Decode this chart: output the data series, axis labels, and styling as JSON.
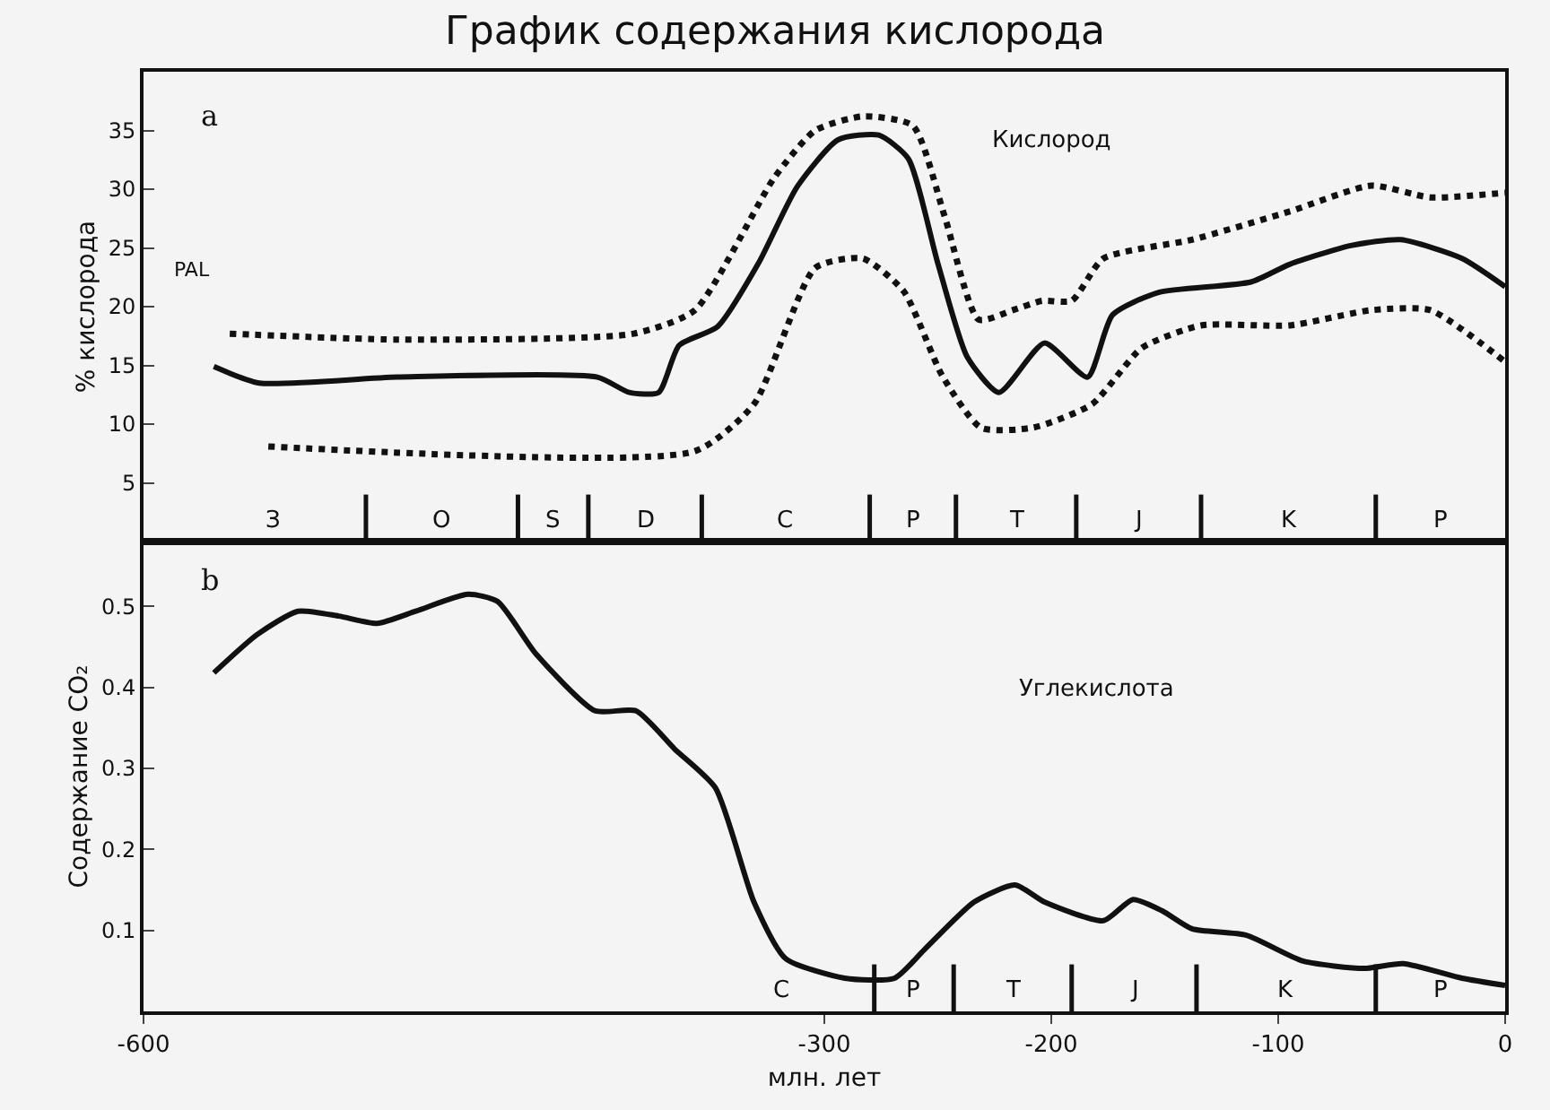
{
  "chart_data": [
    {
      "type": "line",
      "title": "График содержания кислорода",
      "ylabel": "% кислорода",
      "xlim": [
        -600,
        0
      ],
      "ylim": [
        0,
        40
      ],
      "yticks": [
        5,
        10,
        15,
        20,
        25,
        30,
        35
      ],
      "tick_labels": "y",
      "grid": false,
      "series": [
        {
          "color": "#111111",
          "line_style": "solid",
          "x": [
            -569,
            -549,
            -488,
            -400,
            -386,
            -373,
            -364,
            -347,
            -329,
            -312,
            -294,
            -276,
            -263,
            -250,
            -237,
            -223,
            -203,
            -184,
            -173,
            -153,
            -112,
            -95,
            -68,
            -46,
            -19,
            0
          ],
          "values": [
            14.9,
            13.5,
            14.0,
            14.0,
            12.7,
            12.7,
            16.7,
            18.3,
            23.7,
            30.2,
            34.2,
            34.6,
            32.6,
            23.7,
            15.7,
            12.7,
            16.9,
            14.0,
            19.3,
            21.2,
            22.1,
            23.6,
            25.2,
            25.7,
            24.1,
            21.7
          ]
        },
        {
          "color": "#111111",
          "line_style": "dotted",
          "x": [
            -562,
            -488,
            -384,
            -357,
            -322,
            -304,
            -283,
            -261,
            -247,
            -232,
            -217,
            -204,
            -191,
            -177,
            -138,
            -95,
            -59,
            -33,
            0
          ],
          "values": [
            17.7,
            17.2,
            17.7,
            19.7,
            31.0,
            35.0,
            36.2,
            35.4,
            27.7,
            18.9,
            19.7,
            20.5,
            20.5,
            24.1,
            25.7,
            28.1,
            30.3,
            29.3,
            29.7
          ]
        },
        {
          "color": "#111111",
          "line_style": "dotted",
          "x": [
            -545,
            -357,
            -331,
            -304,
            -283,
            -265,
            -248,
            -231,
            -208,
            -182,
            -160,
            -134,
            -95,
            -59,
            -33,
            0
          ],
          "values": [
            8.1,
            7.7,
            11.7,
            23.3,
            24.1,
            21.3,
            14.1,
            9.7,
            9.7,
            11.7,
            16.5,
            18.4,
            18.4,
            19.7,
            19.7,
            15.3
          ]
        }
      ],
      "ref_lines": [
        {
          "axis": "x",
          "value": -502
        },
        {
          "axis": "x",
          "value": -435
        },
        {
          "axis": "x",
          "value": -404
        },
        {
          "axis": "x",
          "value": -354
        },
        {
          "axis": "x",
          "value": -280
        },
        {
          "axis": "x",
          "value": -242
        },
        {
          "axis": "x",
          "value": -189
        },
        {
          "axis": "x",
          "value": -134
        },
        {
          "axis": "x",
          "value": -57
        }
      ],
      "annotations": [
        "a",
        "Кислород",
        "PAL",
        "З",
        "O",
        "S",
        "D",
        "C",
        "P",
        "T",
        "J",
        "K",
        "P"
      ]
    },
    {
      "type": "line",
      "ylabel": "Содержание CO₂",
      "xlabel": "млн. лет",
      "xlim": [
        -600,
        0
      ],
      "xticks": [
        {
          "value": -600,
          "label": "-600"
        },
        {
          "value": -300,
          "label": "-300"
        },
        {
          "value": -200,
          "label": "-200"
        },
        {
          "value": -100,
          "label": "-100"
        },
        0
      ],
      "ylim": [
        0,
        0.58
      ],
      "yticks": [
        0.1,
        0.2,
        0.3,
        0.4,
        0.5
      ],
      "grid": false,
      "series": [
        {
          "color": "#111111",
          "line_style": "solid",
          "x": [
            -569,
            -550,
            -532,
            -514,
            -497,
            -480,
            -457,
            -444,
            -427,
            -401,
            -383,
            -366,
            -348,
            -331,
            -317,
            -291,
            -269,
            -256,
            -234,
            -216,
            -203,
            -177,
            -164,
            -151,
            -138,
            -114,
            -89,
            -62,
            -45,
            -19,
            0
          ],
          "values": [
            0.418,
            0.465,
            0.494,
            0.488,
            0.479,
            0.494,
            0.515,
            0.506,
            0.441,
            0.371,
            0.371,
            0.324,
            0.276,
            0.135,
            0.065,
            0.041,
            0.041,
            0.076,
            0.135,
            0.156,
            0.135,
            0.112,
            0.138,
            0.124,
            0.102,
            0.094,
            0.062,
            0.053,
            0.059,
            0.041,
            0.032
          ]
        }
      ],
      "ref_lines": [
        {
          "axis": "x",
          "value": -278
        },
        {
          "axis": "x",
          "value": -243
        },
        {
          "axis": "x",
          "value": -191
        },
        {
          "axis": "x",
          "value": -136
        },
        {
          "axis": "x",
          "value": -57
        }
      ],
      "annotations": [
        "b",
        "Углекислота",
        "C",
        "P",
        "T",
        "J",
        "K",
        "P"
      ]
    }
  ]
}
